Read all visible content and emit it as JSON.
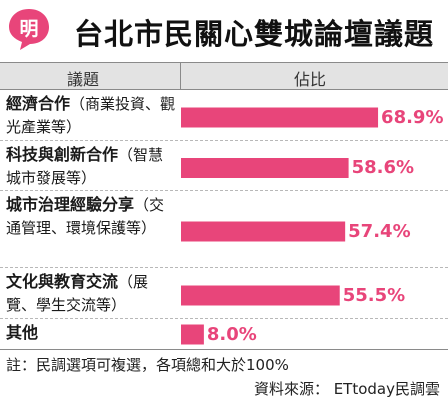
{
  "brand": {
    "logo_text": "明",
    "accent": "#e8457a"
  },
  "chart_data": {
    "type": "bar",
    "orientation": "horizontal",
    "title": "台北市民關心雙城論壇議題",
    "column_headers": [
      "議題",
      "佔比"
    ],
    "unit": "%",
    "categories": [
      {
        "name": "經濟合作",
        "detail": "（商業投資、觀光產業等）"
      },
      {
        "name": "科技與創新合作",
        "detail": "（智慧城市發展等）"
      },
      {
        "name": "城市治理經驗分享",
        "detail": "（交通管理、環境保護等）"
      },
      {
        "name": "文化與教育交流",
        "detail": "（展覽、學生交流等）"
      },
      {
        "name": "其他",
        "detail": ""
      }
    ],
    "values": [
      68.9,
      58.6,
      57.4,
      55.5,
      8.0
    ],
    "value_labels": [
      "68.9%",
      "58.6%",
      "57.4%",
      "55.5%",
      "8.0%"
    ],
    "xlim": [
      0,
      100
    ],
    "bar_color": "#e8457a",
    "grid": false,
    "legend": "none"
  },
  "footer": {
    "note": "註：民調選項可複選，各項總和大於100%",
    "source": "資料來源： ETtoday民調雲"
  }
}
